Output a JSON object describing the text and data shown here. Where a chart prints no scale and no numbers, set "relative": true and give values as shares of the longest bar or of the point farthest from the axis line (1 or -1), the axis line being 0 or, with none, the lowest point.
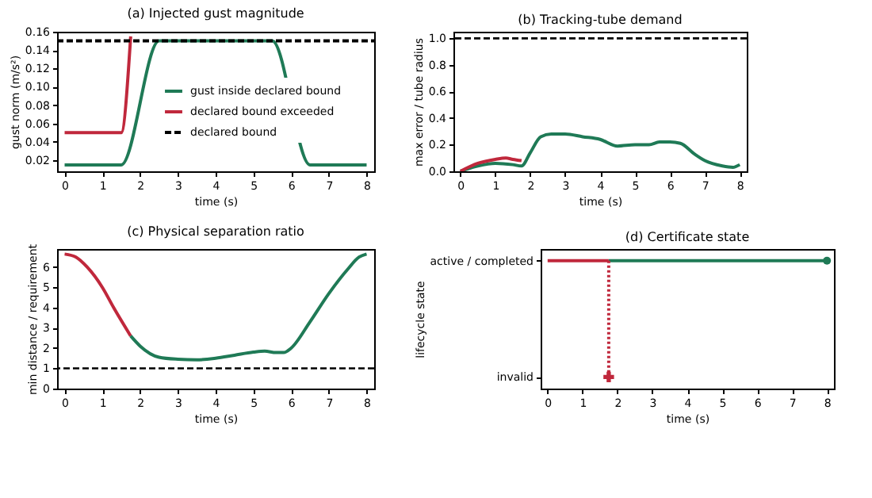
{
  "chart_data": [
    {
      "type": "line",
      "title": "(a) Injected gust magnitude",
      "xlabel": "time (s)",
      "ylabel": "gust norm (m/s²)",
      "xlim": [
        -0.2,
        8.2
      ],
      "xticks": [
        0,
        1,
        2,
        3,
        4,
        5,
        6,
        7,
        8
      ],
      "ylim": [
        0.008,
        0.16
      ],
      "yticks": [
        0.02,
        0.04,
        0.06,
        0.08,
        {
          "value": 0.1,
          "label": "0.10"
        },
        0.12,
        0.14,
        0.16
      ],
      "grid": false,
      "legend": "bottom right",
      "series": [
        {
          "name": "gust inside declared bound",
          "color": "#1f7a56",
          "x": [
            0,
            1.5,
            2.5,
            5.5,
            6.5,
            8
          ],
          "values": [
            0.015,
            0.015,
            0.15,
            0.15,
            0.015,
            0.015
          ]
        },
        {
          "name": "declared bound exceeded",
          "color": "#c0283c",
          "x": [
            0,
            1.5,
            1.75
          ],
          "values": [
            0.05,
            0.05,
            0.155
          ]
        },
        {
          "name": "declared bound",
          "color": "#000000",
          "line_style": "dashed",
          "x": [
            -0.2,
            8.2
          ],
          "values": [
            0.15,
            0.15
          ]
        }
      ]
    },
    {
      "type": "line",
      "title": "(b) Tracking-tube demand",
      "xlabel": "time (s)",
      "ylabel": "max error / tube radius",
      "xlim": [
        -0.2,
        8.2
      ],
      "xticks": [
        0,
        1,
        2,
        3,
        4,
        5,
        6,
        7,
        8
      ],
      "ylim": [
        0,
        1.05
      ],
      "yticks": [
        {
          "value": 0,
          "label": "0.0"
        },
        0.2,
        0.4,
        0.6,
        0.8,
        {
          "value": 1,
          "label": "1.0"
        }
      ],
      "grid": false,
      "series": [
        {
          "color": "#1f7a56",
          "x": [
            0,
            0.5,
            1,
            1.5,
            1.75,
            2,
            2.3,
            2.6,
            3,
            3.5,
            4,
            4.5,
            5,
            5.4,
            5.7,
            6,
            6.3,
            6.7,
            7,
            7.5,
            7.8,
            8
          ],
          "values": [
            0,
            0.04,
            0.06,
            0.05,
            0.04,
            0.14,
            0.26,
            0.28,
            0.28,
            0.26,
            0.24,
            0.19,
            0.2,
            0.2,
            0.22,
            0.22,
            0.21,
            0.13,
            0.08,
            0.04,
            0.03,
            0.05
          ]
        },
        {
          "color": "#c0283c",
          "x": [
            0,
            0.5,
            1,
            1.3,
            1.5,
            1.75
          ],
          "values": [
            0,
            0.06,
            0.09,
            0.1,
            0.09,
            0.08
          ]
        }
      ],
      "ref_lines": [
        {
          "axis": "y",
          "value": 1.0,
          "color": "#000000",
          "line_style": "dashed"
        }
      ]
    },
    {
      "type": "line",
      "title": "(c) Physical separation ratio",
      "xlabel": "time (s)",
      "ylabel": "min distance / requirement",
      "xlim": [
        -0.2,
        8.2
      ],
      "xticks": [
        0,
        1,
        2,
        3,
        4,
        5,
        6,
        7,
        8
      ],
      "ylim": [
        0,
        6.9
      ],
      "yticks": [
        0,
        1,
        2,
        3,
        4,
        5,
        6
      ],
      "grid": false,
      "series": [
        {
          "color": "#c0283c",
          "x": [
            0,
            0.3,
            0.6,
            1,
            1.3,
            1.75
          ],
          "values": [
            6.65,
            6.5,
            6.0,
            5.0,
            4.0,
            2.6
          ]
        },
        {
          "color": "#1f7a56",
          "x": [
            1.75,
            2,
            2.5,
            3,
            3.5,
            4,
            4.5,
            5,
            5.3,
            5.6,
            5.8,
            6,
            6.5,
            7,
            7.5,
            7.8,
            8
          ],
          "values": [
            2.6,
            2.1,
            1.55,
            1.45,
            1.42,
            1.5,
            1.65,
            1.8,
            1.85,
            1.78,
            1.78,
            2.0,
            3.3,
            4.7,
            5.9,
            6.5,
            6.65
          ]
        }
      ],
      "ref_lines": [
        {
          "axis": "y",
          "value": 1.0,
          "color": "#000000",
          "line_style": "dashed"
        }
      ]
    },
    {
      "type": "line",
      "title": "(d) Certificate state",
      "xlabel": "time (s)",
      "ylabel": "lifecycle state",
      "xlim": [
        -0.2,
        8.2
      ],
      "xticks": [
        0,
        1,
        2,
        3,
        4,
        5,
        6,
        7,
        8
      ],
      "relative": true,
      "grid": false,
      "annotations": [
        "active / completed",
        "invalid"
      ],
      "series": [
        {
          "color": "#c0283c",
          "x": [
            0,
            1.75
          ],
          "values": [
            1,
            1
          ]
        },
        {
          "color": "#1f7a56",
          "x": [
            1.75,
            8
          ],
          "values": [
            1,
            1
          ]
        },
        {
          "color": "#c0283c",
          "line_style": "dotted",
          "x": [
            1.75,
            1.75
          ],
          "values": [
            1,
            0
          ]
        },
        {
          "type": "scatter",
          "marker": "cross",
          "color": "#c0283c",
          "x": [
            1.75
          ],
          "values": [
            0
          ]
        },
        {
          "type": "scatter",
          "marker": "circle",
          "color": "#1f7a56",
          "x": [
            8
          ],
          "values": [
            1
          ]
        }
      ]
    }
  ]
}
